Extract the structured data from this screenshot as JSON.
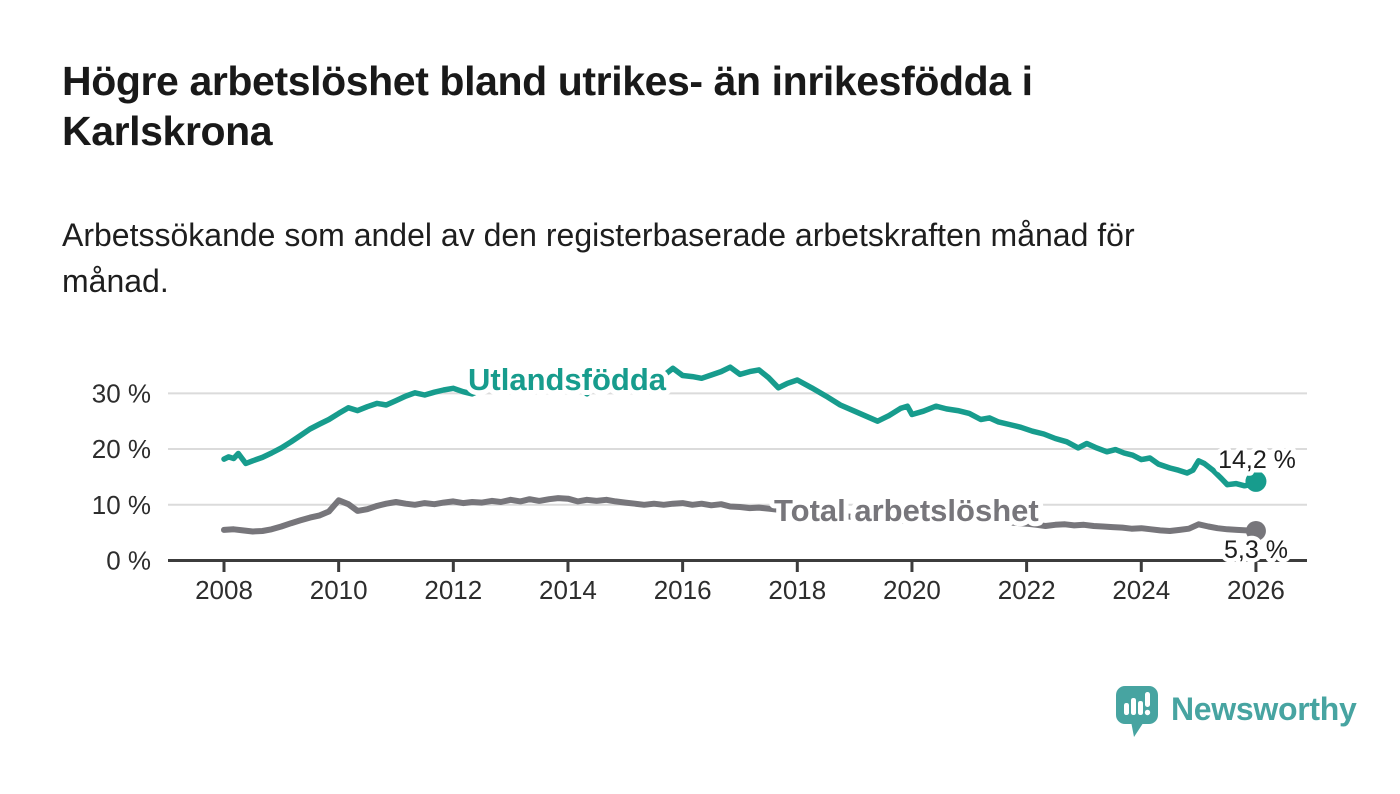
{
  "footer": {
    "brand": "Newsworthy",
    "logo_icon": "speech-bubble-bar-chart-icon",
    "brand_color": "#47a4a1"
  },
  "chart_data": {
    "type": "line",
    "title": "Högre arbetslöshet bland utrikes- än inrikesfödda i Karlskrona",
    "subtitle": "Arbetssökande som andel av den registerbaserade arbetskraften månad för månad.",
    "x_axis": {
      "ticks": [
        2008,
        2010,
        2012,
        2014,
        2016,
        2018,
        2020,
        2022,
        2024,
        2026
      ],
      "range": [
        2007.9,
        2026.45
      ]
    },
    "y_axis": {
      "ticks": [
        0,
        10,
        20,
        30
      ],
      "suffix": " %",
      "range": [
        0,
        36.5
      ],
      "grid": true
    },
    "legend": "inline-labels",
    "series": [
      {
        "name": "Utlandsfödda",
        "color": "#179c8d",
        "line_width": 5.5,
        "dot_radius": 10.5,
        "end_value": 14.2,
        "end_label": "14,2 %",
        "label_anchor": {
          "x": 468,
          "y": 390
        },
        "end_label_pos": {
          "x": 1257,
          "y": 468
        },
        "points": [
          [
            2008.0,
            18.2
          ],
          [
            2008.08,
            18.6
          ],
          [
            2008.17,
            18.3
          ],
          [
            2008.25,
            19.2
          ],
          [
            2008.38,
            17.4
          ],
          [
            2008.5,
            17.9
          ],
          [
            2008.67,
            18.5
          ],
          [
            2008.83,
            19.3
          ],
          [
            2009.0,
            20.2
          ],
          [
            2009.17,
            21.3
          ],
          [
            2009.33,
            22.4
          ],
          [
            2009.5,
            23.6
          ],
          [
            2009.67,
            24.5
          ],
          [
            2009.83,
            25.3
          ],
          [
            2010.0,
            26.4
          ],
          [
            2010.17,
            27.4
          ],
          [
            2010.33,
            26.9
          ],
          [
            2010.5,
            27.6
          ],
          [
            2010.67,
            28.2
          ],
          [
            2010.83,
            27.9
          ],
          [
            2011.0,
            28.7
          ],
          [
            2011.17,
            29.5
          ],
          [
            2011.33,
            30.1
          ],
          [
            2011.5,
            29.7
          ],
          [
            2011.67,
            30.2
          ],
          [
            2011.83,
            30.6
          ],
          [
            2012.0,
            30.9
          ],
          [
            2012.17,
            30.3
          ],
          [
            2012.33,
            29.9
          ],
          [
            2012.5,
            30.7
          ],
          [
            2012.67,
            31.1
          ],
          [
            2012.83,
            31.0
          ],
          [
            2013.0,
            31.4
          ],
          [
            2013.17,
            31.1
          ],
          [
            2013.33,
            31.5
          ],
          [
            2013.5,
            31.3
          ],
          [
            2013.67,
            31.7
          ],
          [
            2013.83,
            31.5
          ],
          [
            2014.0,
            31.9
          ],
          [
            2014.17,
            31.4
          ],
          [
            2014.33,
            29.9
          ],
          [
            2014.5,
            31.6
          ],
          [
            2014.67,
            32.0
          ],
          [
            2014.83,
            32.3
          ],
          [
            2015.0,
            32.1
          ],
          [
            2015.17,
            31.8
          ],
          [
            2015.33,
            30.2
          ],
          [
            2015.5,
            32.3
          ],
          [
            2015.67,
            33.2
          ],
          [
            2015.83,
            34.5
          ],
          [
            2016.0,
            33.2
          ],
          [
            2016.17,
            33.0
          ],
          [
            2016.33,
            32.7
          ],
          [
            2016.5,
            33.3
          ],
          [
            2016.67,
            33.9
          ],
          [
            2016.83,
            34.7
          ],
          [
            2017.0,
            33.4
          ],
          [
            2017.17,
            33.9
          ],
          [
            2017.33,
            34.2
          ],
          [
            2017.5,
            32.8
          ],
          [
            2017.67,
            31.0
          ],
          [
            2017.83,
            31.8
          ],
          [
            2018.0,
            32.4
          ],
          [
            2018.25,
            31.0
          ],
          [
            2018.5,
            29.5
          ],
          [
            2018.75,
            27.9
          ],
          [
            2019.0,
            26.8
          ],
          [
            2019.2,
            25.9
          ],
          [
            2019.4,
            25.0
          ],
          [
            2019.6,
            26.0
          ],
          [
            2019.8,
            27.3
          ],
          [
            2019.92,
            27.7
          ],
          [
            2020.0,
            26.2
          ],
          [
            2020.2,
            26.8
          ],
          [
            2020.42,
            27.7
          ],
          [
            2020.6,
            27.2
          ],
          [
            2020.8,
            26.9
          ],
          [
            2021.0,
            26.4
          ],
          [
            2021.2,
            25.3
          ],
          [
            2021.35,
            25.6
          ],
          [
            2021.5,
            24.9
          ],
          [
            2021.7,
            24.4
          ],
          [
            2021.9,
            23.9
          ],
          [
            2022.1,
            23.2
          ],
          [
            2022.3,
            22.7
          ],
          [
            2022.5,
            21.9
          ],
          [
            2022.7,
            21.3
          ],
          [
            2022.9,
            20.2
          ],
          [
            2023.05,
            21.0
          ],
          [
            2023.2,
            20.3
          ],
          [
            2023.4,
            19.5
          ],
          [
            2023.55,
            19.9
          ],
          [
            2023.7,
            19.3
          ],
          [
            2023.85,
            18.9
          ],
          [
            2024.0,
            18.1
          ],
          [
            2024.15,
            18.4
          ],
          [
            2024.3,
            17.3
          ],
          [
            2024.5,
            16.6
          ],
          [
            2024.65,
            16.2
          ],
          [
            2024.8,
            15.7
          ],
          [
            2024.9,
            16.2
          ],
          [
            2025.0,
            17.9
          ],
          [
            2025.1,
            17.4
          ],
          [
            2025.25,
            16.2
          ],
          [
            2025.4,
            14.7
          ],
          [
            2025.5,
            13.6
          ],
          [
            2025.65,
            13.8
          ],
          [
            2025.8,
            13.4
          ],
          [
            2025.9,
            13.6
          ],
          [
            2026.0,
            14.2
          ]
        ]
      },
      {
        "name": "Total arbetslöshet",
        "color": "#77767b",
        "line_width": 6,
        "dot_radius": 10,
        "end_value": 5.3,
        "end_label": "5,3 %",
        "label_anchor": {
          "x": 774,
          "y": 521
        },
        "end_label_pos": {
          "x": 1256,
          "y": 558
        },
        "points": [
          [
            2008.0,
            5.5
          ],
          [
            2008.17,
            5.6
          ],
          [
            2008.33,
            5.4
          ],
          [
            2008.5,
            5.2
          ],
          [
            2008.67,
            5.3
          ],
          [
            2008.83,
            5.6
          ],
          [
            2009.0,
            6.1
          ],
          [
            2009.17,
            6.7
          ],
          [
            2009.33,
            7.2
          ],
          [
            2009.5,
            7.7
          ],
          [
            2009.67,
            8.1
          ],
          [
            2009.83,
            8.8
          ],
          [
            2010.0,
            10.8
          ],
          [
            2010.17,
            10.1
          ],
          [
            2010.33,
            8.9
          ],
          [
            2010.5,
            9.2
          ],
          [
            2010.67,
            9.8
          ],
          [
            2010.83,
            10.2
          ],
          [
            2011.0,
            10.5
          ],
          [
            2011.17,
            10.2
          ],
          [
            2011.33,
            10.0
          ],
          [
            2011.5,
            10.3
          ],
          [
            2011.67,
            10.1
          ],
          [
            2011.83,
            10.4
          ],
          [
            2012.0,
            10.6
          ],
          [
            2012.17,
            10.3
          ],
          [
            2012.33,
            10.5
          ],
          [
            2012.5,
            10.4
          ],
          [
            2012.67,
            10.7
          ],
          [
            2012.83,
            10.5
          ],
          [
            2013.0,
            10.9
          ],
          [
            2013.17,
            10.6
          ],
          [
            2013.33,
            11.0
          ],
          [
            2013.5,
            10.7
          ],
          [
            2013.67,
            11.0
          ],
          [
            2013.83,
            11.2
          ],
          [
            2014.0,
            11.1
          ],
          [
            2014.17,
            10.6
          ],
          [
            2014.33,
            10.9
          ],
          [
            2014.5,
            10.7
          ],
          [
            2014.67,
            10.9
          ],
          [
            2014.83,
            10.6
          ],
          [
            2015.0,
            10.4
          ],
          [
            2015.17,
            10.2
          ],
          [
            2015.33,
            10.0
          ],
          [
            2015.5,
            10.2
          ],
          [
            2015.67,
            10.0
          ],
          [
            2015.83,
            10.2
          ],
          [
            2016.0,
            10.3
          ],
          [
            2016.17,
            10.0
          ],
          [
            2016.33,
            10.2
          ],
          [
            2016.5,
            9.9
          ],
          [
            2016.67,
            10.1
          ],
          [
            2016.83,
            9.7
          ],
          [
            2017.0,
            9.6
          ],
          [
            2017.17,
            9.4
          ],
          [
            2017.33,
            9.5
          ],
          [
            2017.5,
            9.3
          ],
          [
            2017.67,
            9.1
          ],
          [
            2017.83,
            8.9
          ],
          [
            2018.0,
            8.8
          ],
          [
            2018.25,
            8.5
          ],
          [
            2018.5,
            8.3
          ],
          [
            2018.75,
            8.0
          ],
          [
            2019.0,
            7.8
          ],
          [
            2019.25,
            7.5
          ],
          [
            2019.5,
            7.3
          ],
          [
            2019.75,
            7.1
          ],
          [
            2020.0,
            7.3
          ],
          [
            2020.25,
            7.9
          ],
          [
            2020.5,
            8.1
          ],
          [
            2020.75,
            7.9
          ],
          [
            2021.0,
            7.7
          ],
          [
            2021.25,
            7.4
          ],
          [
            2021.5,
            7.1
          ],
          [
            2021.75,
            6.8
          ],
          [
            2022.0,
            6.6
          ],
          [
            2022.17,
            6.4
          ],
          [
            2022.33,
            6.2
          ],
          [
            2022.5,
            6.4
          ],
          [
            2022.67,
            6.5
          ],
          [
            2022.83,
            6.3
          ],
          [
            2023.0,
            6.4
          ],
          [
            2023.17,
            6.2
          ],
          [
            2023.33,
            6.1
          ],
          [
            2023.5,
            6.0
          ],
          [
            2023.67,
            5.9
          ],
          [
            2023.83,
            5.7
          ],
          [
            2024.0,
            5.8
          ],
          [
            2024.17,
            5.6
          ],
          [
            2024.33,
            5.4
          ],
          [
            2024.5,
            5.3
          ],
          [
            2024.67,
            5.5
          ],
          [
            2024.83,
            5.7
          ],
          [
            2025.0,
            6.5
          ],
          [
            2025.17,
            6.1
          ],
          [
            2025.33,
            5.8
          ],
          [
            2025.5,
            5.6
          ],
          [
            2025.67,
            5.5
          ],
          [
            2025.83,
            5.4
          ],
          [
            2026.0,
            5.3
          ]
        ]
      }
    ]
  }
}
